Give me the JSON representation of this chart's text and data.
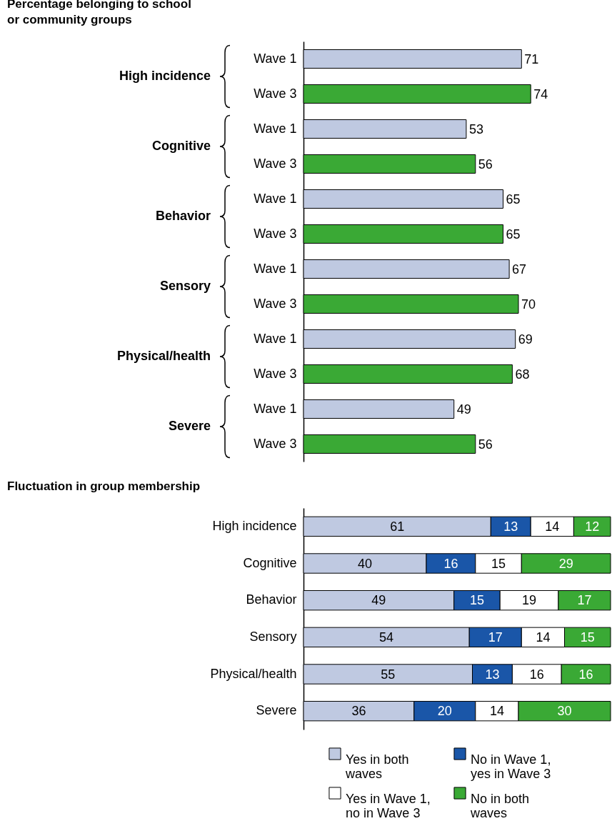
{
  "chart_data": [
    {
      "type": "bar",
      "orientation": "horizontal",
      "title": "Percentage belonging to school or community groups",
      "categories": [
        "High incidence",
        "Cognitive",
        "Behavior",
        "Sensory",
        "Physical/health",
        "Severe"
      ],
      "series": [
        {
          "name": "Wave 1",
          "color": "#bfc9e1",
          "values": [
            71,
            53,
            65,
            67,
            69,
            49
          ]
        },
        {
          "name": "Wave 3",
          "color": "#3aa935",
          "values": [
            74,
            56,
            65,
            70,
            68,
            56
          ]
        }
      ],
      "xlim": [
        0,
        100
      ],
      "tick_labels": "y",
      "data_labels": true
    },
    {
      "type": "bar",
      "orientation": "horizontal",
      "stacked": true,
      "title": "Fluctuation in group membership",
      "categories": [
        "High incidence",
        "Cognitive",
        "Behavior",
        "Sensory",
        "Physical/health",
        "Severe"
      ],
      "series": [
        {
          "name": "Yes in both waves",
          "color": "#bfc9e1",
          "values": [
            61,
            40,
            49,
            54,
            55,
            36
          ]
        },
        {
          "name": "No in Wave 1, yes in Wave 3",
          "color": "#1a56a8",
          "values": [
            13,
            16,
            15,
            17,
            13,
            20
          ]
        },
        {
          "name": "Yes in Wave 1, no in Wave 3",
          "color": "#ffffff",
          "values": [
            14,
            15,
            19,
            14,
            16,
            14
          ]
        },
        {
          "name": "No in both waves",
          "color": "#3aa935",
          "values": [
            12,
            29,
            17,
            15,
            16,
            30
          ]
        }
      ],
      "xlim": [
        0,
        100
      ],
      "tick_labels": "y",
      "data_labels": true,
      "legend": "bottom"
    }
  ]
}
